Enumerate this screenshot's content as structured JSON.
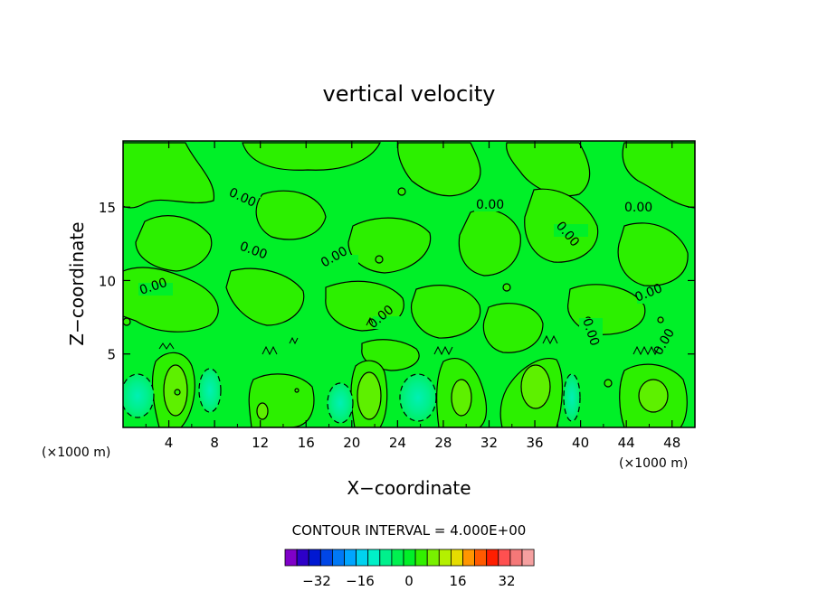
{
  "chart_data": {
    "type": "heatmap",
    "title": "vertical velocity",
    "xlabel": "X−coordinate",
    "ylabel": "Z−coordinate",
    "x_unit": "(×1000 m)",
    "z_unit": "(×1000 m)",
    "xlim": [
      0,
      50
    ],
    "ylim": [
      0,
      19.5
    ],
    "x_ticks": [
      4,
      8,
      12,
      16,
      20,
      24,
      28,
      32,
      36,
      40,
      44,
      48
    ],
    "y_ticks": [
      5,
      10,
      15
    ],
    "contour_interval_text": "CONTOUR INTERVAL = 4.000E+00",
    "contour_labels": [
      "0.00",
      "0.00",
      "0.00",
      "0.00",
      "0.00",
      "0.00",
      "0.00",
      "0.00",
      "0.00",
      "0.00",
      "0.00"
    ],
    "colorbar": {
      "ticks": [
        "−32",
        "−16",
        "0",
        "16",
        "32"
      ],
      "colors": [
        "#7f00c8",
        "#2d00c8",
        "#0018d2",
        "#0046e6",
        "#0078f5",
        "#00a5ff",
        "#00d2f0",
        "#00f0c8",
        "#00f08c",
        "#00f050",
        "#00f028",
        "#32f000",
        "#78f000",
        "#b4f000",
        "#e6dc00",
        "#ff9600",
        "#ff5a00",
        "#ff1e00",
        "#ff5050",
        "#f57878",
        "#f5a0a0"
      ]
    },
    "regions": [
      {
        "x": 1.8,
        "z": 2.2,
        "kind": "negative"
      },
      {
        "x": 5,
        "z": 2.6,
        "kind": "positive"
      },
      {
        "x": 7.8,
        "z": 2.6,
        "kind": "negative"
      },
      {
        "x": 12.5,
        "z": 1.4,
        "kind": "positive"
      },
      {
        "x": 19.5,
        "z": 2,
        "kind": "negative"
      },
      {
        "x": 21.8,
        "z": 2.6,
        "kind": "positive"
      },
      {
        "x": 25.5,
        "z": 2,
        "kind": "negative"
      },
      {
        "x": 29.5,
        "z": 2.4,
        "kind": "positive"
      },
      {
        "x": 35,
        "z": 2.8,
        "kind": "positive"
      },
      {
        "x": 39,
        "z": 2,
        "kind": "negative"
      },
      {
        "x": 46,
        "z": 2.4,
        "kind": "positive"
      }
    ]
  }
}
